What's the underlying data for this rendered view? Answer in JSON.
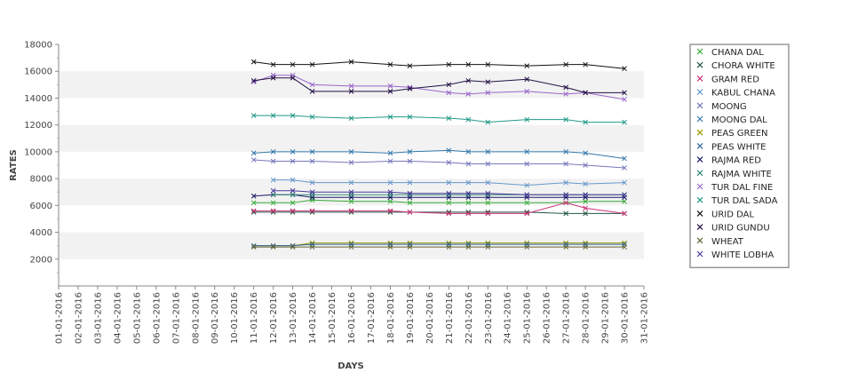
{
  "chart_data": {
    "type": "line",
    "title": "",
    "xlabel": "DAYS",
    "ylabel": "RATES",
    "ylim": [
      0,
      18000
    ],
    "yticks": [
      2000,
      4000,
      6000,
      8000,
      10000,
      12000,
      14000,
      16000,
      18000
    ],
    "grid": "alternating horizontal bands",
    "legend_position": "right",
    "x_ticks": [
      "01-01-2016",
      "02-01-2016",
      "03-01-2016",
      "04-01-2016",
      "05-01-2016",
      "06-01-2016",
      "07-01-2016",
      "08-01-2016",
      "09-01-2016",
      "10-01-2016",
      "11-01-2016",
      "12-01-2016",
      "13-01-2016",
      "14-01-2016",
      "15-01-2016",
      "16-01-2016",
      "17-01-2016",
      "18-01-2016",
      "19-01-2016",
      "20-01-2016",
      "21-01-2016",
      "22-01-2016",
      "23-01-2016",
      "24-01-2016",
      "25-01-2016",
      "26-01-2016",
      "27-01-2016",
      "28-01-2016",
      "29-01-2016",
      "30-01-2016",
      "31-01-2016"
    ],
    "x": [
      "11-01-2016",
      "12-01-2016",
      "13-01-2016",
      "14-01-2016",
      "16-01-2016",
      "18-01-2016",
      "19-01-2016",
      "21-01-2016",
      "22-01-2016",
      "23-01-2016",
      "25-01-2016",
      "27-01-2016",
      "28-01-2016",
      "30-01-2016"
    ],
    "series": [
      {
        "name": "CHANA DAL",
        "color": "#33aa33",
        "values": [
          6200,
          6200,
          6200,
          6400,
          6300,
          6300,
          6200,
          6200,
          6200,
          6200,
          6200,
          6200,
          6300,
          6300
        ]
      },
      {
        "name": "CHORA WHITE",
        "color": "#225544",
        "values": [
          5500,
          5500,
          5500,
          5500,
          5500,
          5500,
          5500,
          5500,
          5500,
          5500,
          5500,
          5400,
          5400,
          5400
        ]
      },
      {
        "name": "GRAM RED",
        "color": "#cc3377",
        "values": [
          5600,
          5600,
          5600,
          5600,
          5600,
          5600,
          5500,
          5400,
          5400,
          5400,
          5400,
          6200,
          5800,
          5400
        ]
      },
      {
        "name": "KABUL CHANA",
        "color": "#6699cc",
        "values": [
          null,
          7900,
          7900,
          7700,
          7700,
          7700,
          7700,
          7700,
          7700,
          7700,
          7500,
          7700,
          7600,
          7700
        ]
      },
      {
        "name": "MOONG",
        "color": "#7777bb",
        "values": [
          9400,
          9300,
          9300,
          9300,
          9200,
          9300,
          9300,
          9200,
          9100,
          9100,
          9100,
          9100,
          9000,
          8800
        ]
      },
      {
        "name": "MOONG DAL",
        "color": "#3377aa",
        "values": [
          9900,
          10000,
          10000,
          10000,
          10000,
          9900,
          10000,
          10100,
          10000,
          10000,
          10000,
          10000,
          9900,
          9500
        ]
      },
      {
        "name": "PEAS GREEN",
        "color": "#999900",
        "values": [
          3000,
          3000,
          3000,
          3200,
          3200,
          3200,
          3200,
          3200,
          3200,
          3200,
          3200,
          3200,
          3200,
          3200
        ]
      },
      {
        "name": "PEAS WHITE",
        "color": "#336699",
        "values": [
          3000,
          3000,
          3000,
          3100,
          3100,
          3100,
          3100,
          3100,
          3100,
          3100,
          3100,
          3100,
          3100,
          3100
        ]
      },
      {
        "name": "RAJMA RED",
        "color": "#1a1a66",
        "values": [
          6700,
          6800,
          6800,
          6600,
          6600,
          6600,
          6600,
          6600,
          6600,
          6600,
          6600,
          6600,
          6600,
          6600
        ]
      },
      {
        "name": "RAJMA WHITE",
        "color": "#338877",
        "values": [
          null,
          6800,
          6800,
          6800,
          6800,
          6800,
          6800,
          6800,
          6800,
          6800,
          6800,
          6800,
          6800,
          6800
        ]
      },
      {
        "name": "TUR DAL FINE",
        "color": "#9966cc",
        "values": [
          15200,
          15700,
          15700,
          15000,
          14900,
          14900,
          14800,
          14400,
          14300,
          14400,
          14500,
          14300,
          14400,
          13900
        ]
      },
      {
        "name": "TUR DAL SADA",
        "color": "#229988",
        "values": [
          12700,
          12700,
          12700,
          12600,
          12500,
          12600,
          12600,
          12500,
          12400,
          12200,
          12400,
          12400,
          12200,
          12200
        ]
      },
      {
        "name": "URID DAL",
        "color": "#111111",
        "values": [
          16700,
          16500,
          16500,
          16500,
          16700,
          16500,
          16400,
          16500,
          16500,
          16500,
          16400,
          16500,
          16500,
          16200
        ]
      },
      {
        "name": "URID GUNDU",
        "color": "#221144",
        "values": [
          15300,
          15500,
          15500,
          14500,
          14500,
          14500,
          14700,
          15000,
          15300,
          15200,
          15400,
          14800,
          14400,
          14400
        ]
      },
      {
        "name": "WHEAT",
        "color": "#666633",
        "values": [
          2900,
          2900,
          2900,
          2900,
          2900,
          2900,
          2900,
          2900,
          2900,
          2900,
          2900,
          2900,
          2900,
          2900
        ]
      },
      {
        "name": "WHITE LOBHA",
        "color": "#4a3a99",
        "values": [
          null,
          7100,
          7100,
          7000,
          7000,
          7000,
          6900,
          6900,
          6900,
          6900,
          6800,
          6800,
          6800,
          6800
        ]
      }
    ]
  }
}
